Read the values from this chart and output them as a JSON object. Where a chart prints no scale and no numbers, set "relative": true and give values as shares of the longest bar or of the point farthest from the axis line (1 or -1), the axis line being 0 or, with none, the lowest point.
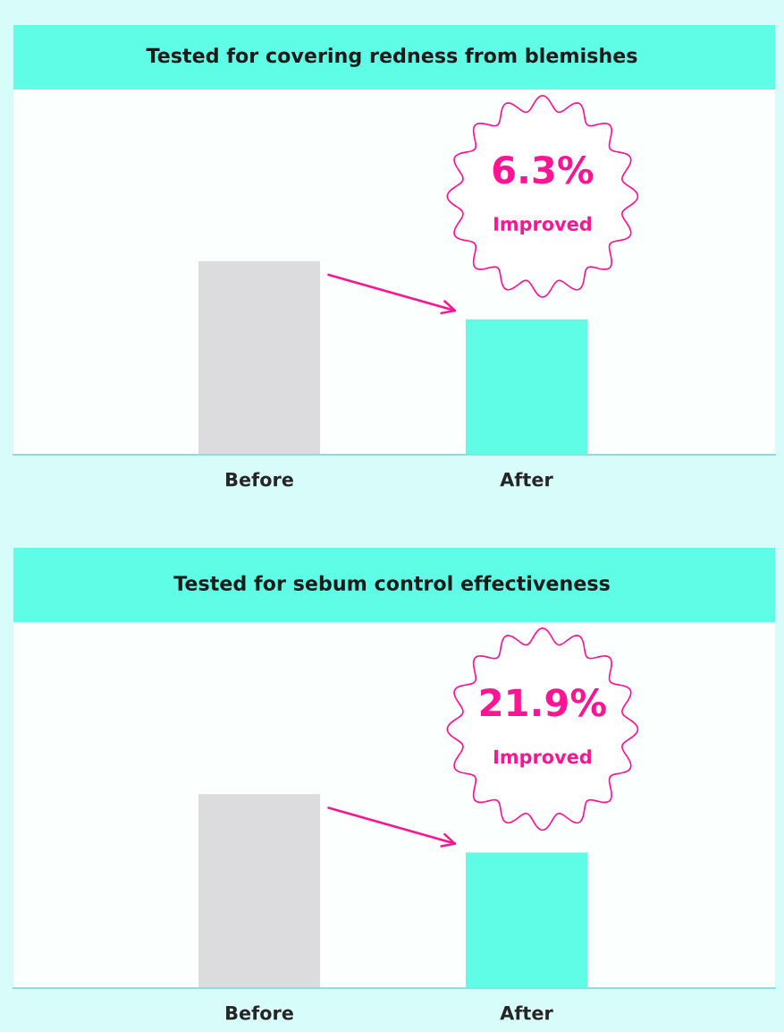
{
  "chart_data": [
    {
      "type": "bar",
      "title": "Tested for covering redness from blemishes",
      "categories": [
        "Before",
        "After"
      ],
      "values": [
        1,
        0.7
      ],
      "colors": [
        "#dcdbdd",
        "#5ffde6"
      ],
      "relative": true,
      "annotations": [
        "6.3%",
        "Improved"
      ]
    },
    {
      "type": "bar",
      "title": "Tested for sebum control effectiveness",
      "categories": [
        "Before",
        "After"
      ],
      "values": [
        1,
        0.7
      ],
      "colors": [
        "#dcdbdd",
        "#5ffde6"
      ],
      "relative": true,
      "annotations": [
        "21.9%",
        "Improved"
      ]
    }
  ]
}
